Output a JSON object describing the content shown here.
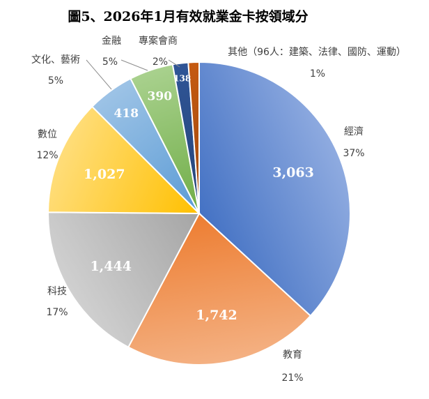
{
  "chart_data": {
    "type": "pie",
    "title": "圖5、2026年1月有效就業金卡按領域分",
    "slices": [
      {
        "category": "經濟",
        "value": 3063,
        "value_label": "3,063",
        "percent_label": "37%",
        "color_light": "#8fabe0",
        "color_dark": "#4472c4"
      },
      {
        "category": "教育",
        "value": 1742,
        "value_label": "1,742",
        "percent_label": "21%",
        "color_light": "#f4b183",
        "color_dark": "#ed7d31"
      },
      {
        "category": "科技",
        "value": 1444,
        "value_label": "1,444",
        "percent_label": "17%",
        "color_light": "#d0d0d0",
        "color_dark": "#a5a5a5"
      },
      {
        "category": "數位",
        "value": 1027,
        "value_label": "1,027",
        "percent_label": "12%",
        "color_light": "#ffdd7a",
        "color_dark": "#ffc000"
      },
      {
        "category": "文化、藝術",
        "value": 418,
        "value_label": "418",
        "percent_label": "5%",
        "color_light": "#9dc3e6",
        "color_dark": "#5b9bd5"
      },
      {
        "category": "金融",
        "value": 390,
        "value_label": "390",
        "percent_label": "5%",
        "color_light": "#a9d18e",
        "color_dark": "#70ad47"
      },
      {
        "category": "專案會商",
        "value": 138,
        "value_label": "138",
        "percent_label": "2%",
        "color_light": "#2f5597",
        "color_dark": "#264478"
      },
      {
        "category": "其他（96人：建築、法律、國防、運動）",
        "value": 96,
        "value_label": "",
        "percent_label": "1%",
        "color_light": "#c55a11",
        "color_dark": "#9e480e"
      }
    ],
    "legend": "none"
  }
}
